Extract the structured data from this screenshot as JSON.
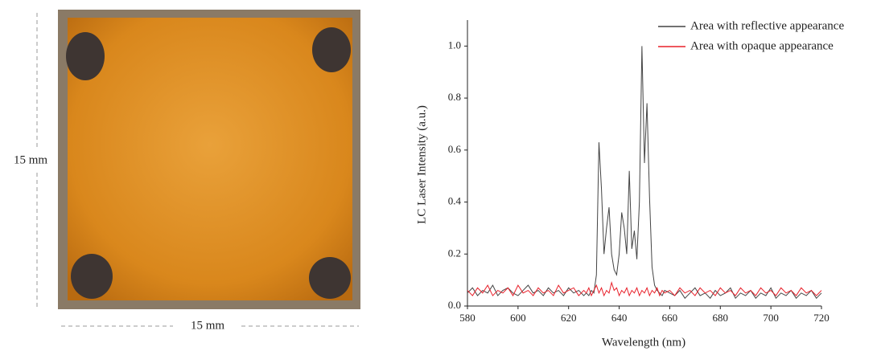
{
  "photo": {
    "height_label": "15 mm",
    "width_label": "15 mm"
  },
  "chart_data": {
    "type": "line",
    "x_label": "Wavelength (nm)",
    "y_label": "LC Laser Intensity (a.u.)",
    "xlim": [
      580,
      720
    ],
    "xticks": [
      580,
      600,
      620,
      640,
      660,
      680,
      700,
      720
    ],
    "ylim": [
      0,
      1.1
    ],
    "yticks": [
      {
        "value": 0,
        "label": "0.0"
      },
      0.2,
      0.4,
      0.6,
      0.8,
      {
        "value": 1,
        "label": "1.0"
      }
    ],
    "legend": "upper right",
    "x": [
      580,
      582,
      584,
      586,
      588,
      590,
      592,
      594,
      596,
      598,
      600,
      602,
      604,
      606,
      608,
      610,
      612,
      614,
      616,
      618,
      620,
      622,
      624,
      626,
      627,
      628,
      629,
      630,
      631,
      632,
      633,
      634,
      635,
      636,
      637,
      638,
      639,
      640,
      641,
      642,
      643,
      644,
      645,
      646,
      647,
      648,
      649,
      650,
      651,
      652,
      653,
      654,
      655,
      656,
      657,
      658,
      660,
      662,
      664,
      666,
      668,
      670,
      672,
      674,
      676,
      678,
      680,
      682,
      684,
      686,
      688,
      690,
      692,
      694,
      696,
      698,
      700,
      702,
      704,
      706,
      708,
      710,
      712,
      714,
      716,
      718,
      720
    ],
    "series": [
      {
        "name": "Area with reflective appearance",
        "color": "#444444",
        "values": [
          0.05,
          0.07,
          0.04,
          0.06,
          0.05,
          0.08,
          0.04,
          0.06,
          0.07,
          0.05,
          0.04,
          0.06,
          0.08,
          0.05,
          0.06,
          0.04,
          0.07,
          0.05,
          0.06,
          0.04,
          0.07,
          0.05,
          0.06,
          0.04,
          0.05,
          0.04,
          0.06,
          0.05,
          0.12,
          0.63,
          0.45,
          0.2,
          0.3,
          0.38,
          0.2,
          0.14,
          0.12,
          0.2,
          0.36,
          0.3,
          0.2,
          0.52,
          0.22,
          0.29,
          0.18,
          0.4,
          1.0,
          0.55,
          0.78,
          0.42,
          0.15,
          0.08,
          0.06,
          0.05,
          0.04,
          0.06,
          0.05,
          0.04,
          0.06,
          0.03,
          0.05,
          0.07,
          0.04,
          0.05,
          0.03,
          0.06,
          0.04,
          0.05,
          0.07,
          0.03,
          0.05,
          0.04,
          0.06,
          0.03,
          0.05,
          0.04,
          0.07,
          0.03,
          0.05,
          0.04,
          0.06,
          0.03,
          0.05,
          0.04,
          0.06,
          0.03,
          0.05
        ]
      },
      {
        "name": "Area with opaque appearance",
        "color": "#e8202a",
        "values": [
          0.06,
          0.04,
          0.07,
          0.05,
          0.08,
          0.04,
          0.06,
          0.05,
          0.07,
          0.04,
          0.08,
          0.05,
          0.06,
          0.04,
          0.07,
          0.05,
          0.06,
          0.04,
          0.08,
          0.05,
          0.06,
          0.07,
          0.04,
          0.06,
          0.05,
          0.07,
          0.04,
          0.06,
          0.08,
          0.05,
          0.07,
          0.04,
          0.06,
          0.05,
          0.09,
          0.06,
          0.07,
          0.04,
          0.06,
          0.05,
          0.07,
          0.04,
          0.06,
          0.05,
          0.07,
          0.04,
          0.06,
          0.05,
          0.07,
          0.04,
          0.06,
          0.05,
          0.07,
          0.04,
          0.06,
          0.05,
          0.06,
          0.04,
          0.07,
          0.05,
          0.06,
          0.04,
          0.07,
          0.05,
          0.06,
          0.04,
          0.07,
          0.05,
          0.06,
          0.04,
          0.07,
          0.05,
          0.06,
          0.04,
          0.07,
          0.05,
          0.06,
          0.04,
          0.07,
          0.05,
          0.06,
          0.04,
          0.07,
          0.05,
          0.06,
          0.04,
          0.06
        ]
      }
    ]
  }
}
